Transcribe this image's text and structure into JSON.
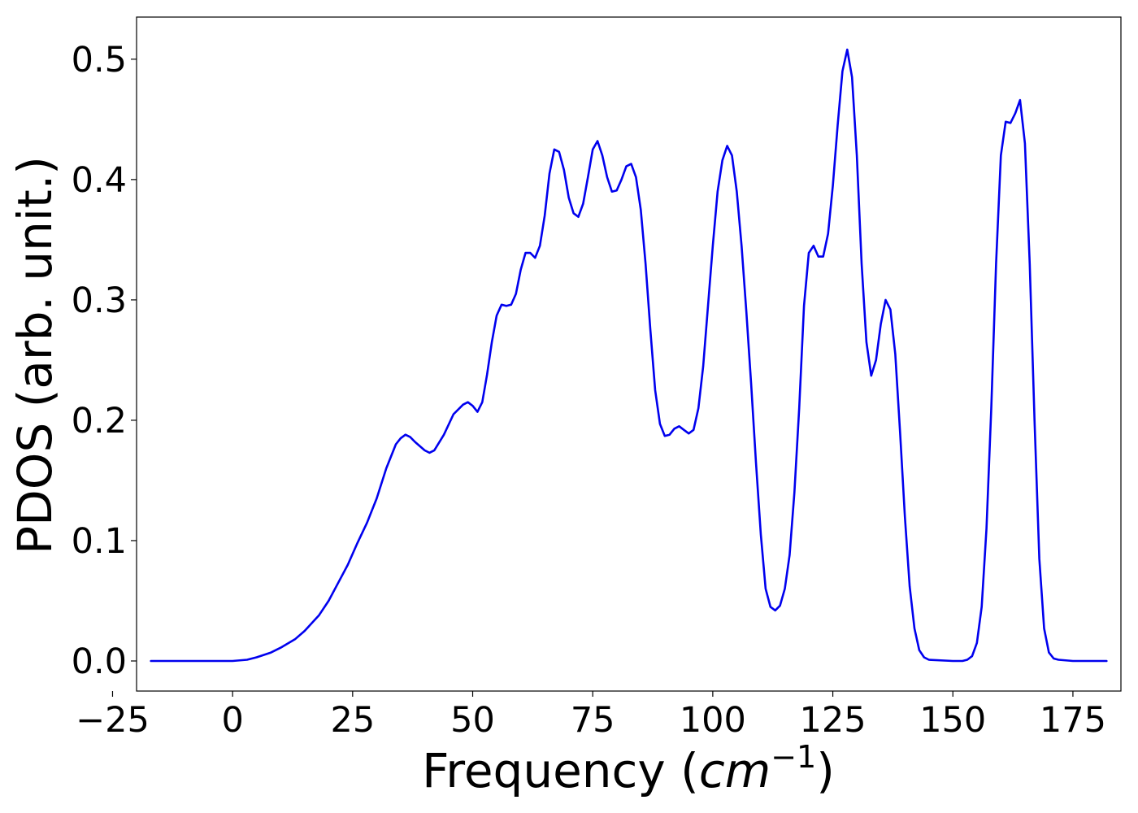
{
  "chart_data": {
    "type": "line",
    "title": "",
    "xlabel": "Frequency (cm^-1)",
    "xlabel_parts": {
      "text": "Frequency (",
      "italic": "cm",
      "sup": "−1",
      "close": ")"
    },
    "ylabel": "PDOS (arb. unit.)",
    "xlim": [
      -20,
      185
    ],
    "ylim": [
      -0.025,
      0.535
    ],
    "xticks": [
      -25,
      0,
      25,
      50,
      75,
      100,
      125,
      150,
      175
    ],
    "xtick_labels": [
      "−25",
      "0",
      "25",
      "50",
      "75",
      "100",
      "125",
      "150",
      "175"
    ],
    "yticks": [
      0.0,
      0.1,
      0.2,
      0.3,
      0.4,
      0.5
    ],
    "ytick_labels": [
      "0.0",
      "0.1",
      "0.2",
      "0.3",
      "0.4",
      "0.5"
    ],
    "grid": false,
    "legend": false,
    "series": [
      {
        "color": "#0000ee",
        "x": [
          -17,
          -10,
          -5,
          0,
          3,
          5,
          8,
          10,
          13,
          15,
          18,
          20,
          22,
          24,
          26,
          28,
          30,
          32,
          34,
          35,
          36,
          37,
          38,
          40,
          41,
          42,
          44,
          46,
          48,
          49,
          50,
          51,
          52,
          53,
          54,
          55,
          56,
          57,
          58,
          59,
          60,
          61,
          62,
          63,
          64,
          65,
          66,
          67,
          68,
          69,
          70,
          71,
          72,
          73,
          74,
          75,
          76,
          77,
          78,
          79,
          80,
          81,
          82,
          83,
          84,
          85,
          86,
          87,
          88,
          89,
          90,
          91,
          92,
          93,
          94,
          95,
          96,
          97,
          98,
          99,
          100,
          101,
          102,
          103,
          104,
          105,
          106,
          107,
          108,
          109,
          110,
          111,
          112,
          113,
          114,
          115,
          116,
          117,
          118,
          119,
          120,
          121,
          122,
          123,
          124,
          125,
          126,
          127,
          128,
          129,
          130,
          131,
          132,
          133,
          134,
          135,
          136,
          137,
          138,
          139,
          140,
          141,
          142,
          143,
          144,
          145,
          150,
          152,
          153,
          154,
          155,
          156,
          157,
          158,
          159,
          160,
          161,
          162,
          163,
          164,
          165,
          166,
          167,
          168,
          169,
          170,
          171,
          172,
          175,
          182
        ],
        "y": [
          0.0,
          0.0,
          0.0,
          0.0,
          0.001,
          0.003,
          0.007,
          0.011,
          0.018,
          0.025,
          0.038,
          0.05,
          0.065,
          0.08,
          0.098,
          0.115,
          0.135,
          0.16,
          0.18,
          0.185,
          0.188,
          0.186,
          0.182,
          0.175,
          0.173,
          0.175,
          0.188,
          0.205,
          0.213,
          0.215,
          0.212,
          0.207,
          0.215,
          0.238,
          0.265,
          0.287,
          0.296,
          0.295,
          0.296,
          0.305,
          0.325,
          0.339,
          0.339,
          0.335,
          0.345,
          0.37,
          0.405,
          0.425,
          0.423,
          0.408,
          0.385,
          0.372,
          0.369,
          0.38,
          0.402,
          0.425,
          0.432,
          0.42,
          0.402,
          0.39,
          0.391,
          0.4,
          0.411,
          0.413,
          0.402,
          0.375,
          0.33,
          0.275,
          0.225,
          0.197,
          0.187,
          0.188,
          0.193,
          0.195,
          0.192,
          0.189,
          0.192,
          0.21,
          0.245,
          0.295,
          0.345,
          0.39,
          0.416,
          0.428,
          0.42,
          0.39,
          0.345,
          0.29,
          0.23,
          0.165,
          0.105,
          0.06,
          0.045,
          0.042,
          0.046,
          0.06,
          0.088,
          0.14,
          0.21,
          0.295,
          0.339,
          0.345,
          0.336,
          0.336,
          0.355,
          0.395,
          0.445,
          0.49,
          0.508,
          0.485,
          0.42,
          0.33,
          0.265,
          0.237,
          0.25,
          0.28,
          0.3,
          0.292,
          0.255,
          0.19,
          0.12,
          0.062,
          0.027,
          0.009,
          0.003,
          0.001,
          0.0,
          0.0,
          0.001,
          0.004,
          0.015,
          0.045,
          0.11,
          0.21,
          0.33,
          0.42,
          0.448,
          0.447,
          0.455,
          0.466,
          0.43,
          0.33,
          0.2,
          0.085,
          0.027,
          0.007,
          0.002,
          0.001,
          0.0,
          0.0
        ]
      }
    ]
  }
}
